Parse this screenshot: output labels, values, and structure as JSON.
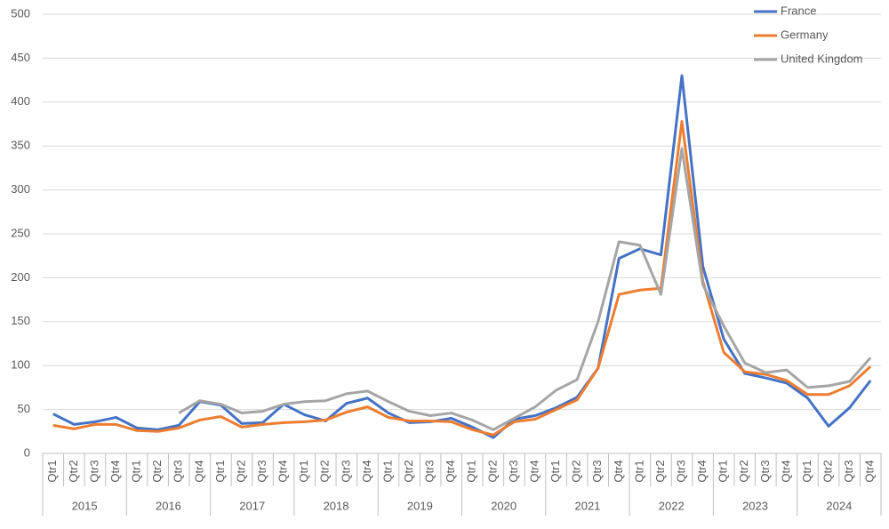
{
  "chart_data": {
    "type": "line",
    "categories": [
      "Qtr1",
      "Qtr2",
      "Qtr3",
      "Qtr4",
      "Qtr1",
      "Qtr2",
      "Qtr3",
      "Qtr4",
      "Qtr1",
      "Qtr2",
      "Qtr3",
      "Qtr4",
      "Qtr1",
      "Qtr2",
      "Qtr3",
      "Qtr4",
      "Qtr1",
      "Qtr2",
      "Qtr3",
      "Qtr4",
      "Qtr1",
      "Qtr2",
      "Qtr3",
      "Qtr4",
      "Qtr1",
      "Qtr2",
      "Qtr3",
      "Qtr4",
      "Qtr1",
      "Qtr2",
      "Qtr3",
      "Qtr4",
      "Qtr1",
      "Qtr2",
      "Qtr3",
      "Qtr4",
      "Qtr1",
      "Qtr2",
      "Qtr3",
      "Qtr4"
    ],
    "years": [
      "2015",
      "2016",
      "2017",
      "2018",
      "2019",
      "2020",
      "2021",
      "2022",
      "2023",
      "2024"
    ],
    "series": [
      {
        "name": "France",
        "color": "#4472c4",
        "values": [
          45,
          33,
          36,
          41,
          29,
          27,
          32,
          59,
          55,
          34,
          35,
          56,
          44,
          37,
          57,
          63,
          46,
          35,
          36,
          40,
          30,
          18,
          39,
          43,
          52,
          64,
          97,
          222,
          233,
          226,
          430,
          213,
          130,
          91,
          86,
          80,
          63,
          31,
          52,
          83
        ]
      },
      {
        "name": "Germany",
        "color": "#ed7d31",
        "values": [
          32,
          28,
          33,
          33,
          26,
          25,
          29,
          38,
          42,
          30,
          33,
          35,
          36,
          38,
          47,
          53,
          41,
          37,
          37,
          36,
          27,
          21,
          36,
          39,
          50,
          61,
          97,
          181,
          186,
          188,
          378,
          196,
          115,
          93,
          90,
          83,
          67,
          67,
          77,
          99
        ]
      },
      {
        "name": "United Kingdom",
        "color": "#a5a5a5",
        "values": [
          null,
          null,
          null,
          null,
          null,
          null,
          46,
          60,
          56,
          46,
          48,
          56,
          59,
          60,
          68,
          71,
          59,
          48,
          43,
          46,
          38,
          27,
          40,
          53,
          72,
          84,
          150,
          241,
          237,
          181,
          347,
          192,
          145,
          103,
          92,
          95,
          75,
          77,
          82,
          109
        ]
      }
    ],
    "ylim": [
      0,
      500
    ],
    "yticks": [
      0,
      50,
      100,
      150,
      200,
      250,
      300,
      350,
      400,
      450,
      500
    ],
    "grid": true,
    "legend": "top-right"
  }
}
